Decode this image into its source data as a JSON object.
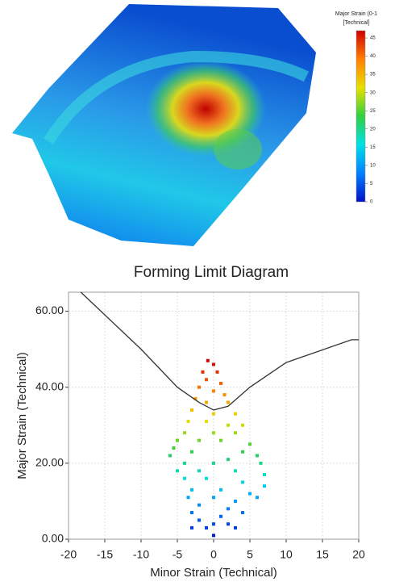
{
  "chart_data": [
    {
      "type": "contour",
      "colorbar_title": [
        "Major Strain (0-1",
        "[Technical]"
      ],
      "clim": [
        0,
        47
      ],
      "cticks": [
        0,
        5,
        10,
        15,
        20,
        25,
        30,
        35,
        40,
        45
      ],
      "colorscale": [
        "#0010c8",
        "#0080ff",
        "#00e0e8",
        "#30d040",
        "#e8e000",
        "#ff8000",
        "#d00000"
      ]
    },
    {
      "type": "scatter",
      "title": "Forming Limit Diagram",
      "xlabel": "Minor Strain (Technical)",
      "ylabel": "Major Strain (Technical)",
      "xlim": [
        -20,
        20
      ],
      "ylim": [
        0,
        65
      ],
      "xticks": [
        -20,
        -15,
        -10,
        -5,
        0,
        5,
        10,
        15,
        20
      ],
      "yticks": [
        {
          "value": 0,
          "label": "0.00"
        },
        {
          "value": 20,
          "label": "20.00"
        },
        {
          "value": 40,
          "label": "40.00"
        },
        {
          "value": 60,
          "label": "60.00"
        }
      ],
      "grid": true,
      "flc": {
        "color": "#333333",
        "x": [
          -18.3,
          -10,
          -5,
          -2,
          0,
          2,
          5,
          10,
          19,
          20
        ],
        "y": [
          65,
          50,
          40,
          36,
          34,
          35,
          40,
          46.5,
          52.5,
          52.5
        ]
      },
      "points": {
        "x": [
          -0.8,
          0,
          -1.5,
          0.5,
          -1,
          1,
          -2,
          0,
          1.5,
          -2.5,
          2,
          -1,
          -3,
          3,
          0,
          -3.5,
          -1,
          2,
          4,
          -4,
          0,
          3,
          -5,
          -2,
          1,
          5,
          -5.5,
          -3,
          4,
          6,
          -6,
          -4,
          2,
          0,
          6.5,
          -5,
          -2,
          3,
          7,
          -4,
          -1,
          4,
          7,
          -3,
          1,
          5,
          -3.5,
          0,
          3,
          6,
          -2,
          2,
          -3,
          1,
          4,
          -2,
          0,
          2,
          -3,
          -1,
          3,
          0
        ],
        "y": [
          47,
          46,
          44,
          44,
          42,
          41,
          40,
          39,
          38,
          37,
          36,
          36,
          34,
          33,
          33,
          31,
          31,
          30,
          30,
          28,
          28,
          28,
          26,
          26,
          26,
          25,
          24,
          23,
          23,
          22,
          22,
          20,
          21,
          20,
          20,
          18,
          18,
          18,
          17,
          16,
          16,
          15,
          14,
          13,
          13,
          12,
          11,
          11,
          10,
          11,
          9,
          8,
          7,
          6,
          7,
          5,
          4,
          4,
          3,
          3,
          3,
          1
        ]
      }
    }
  ]
}
